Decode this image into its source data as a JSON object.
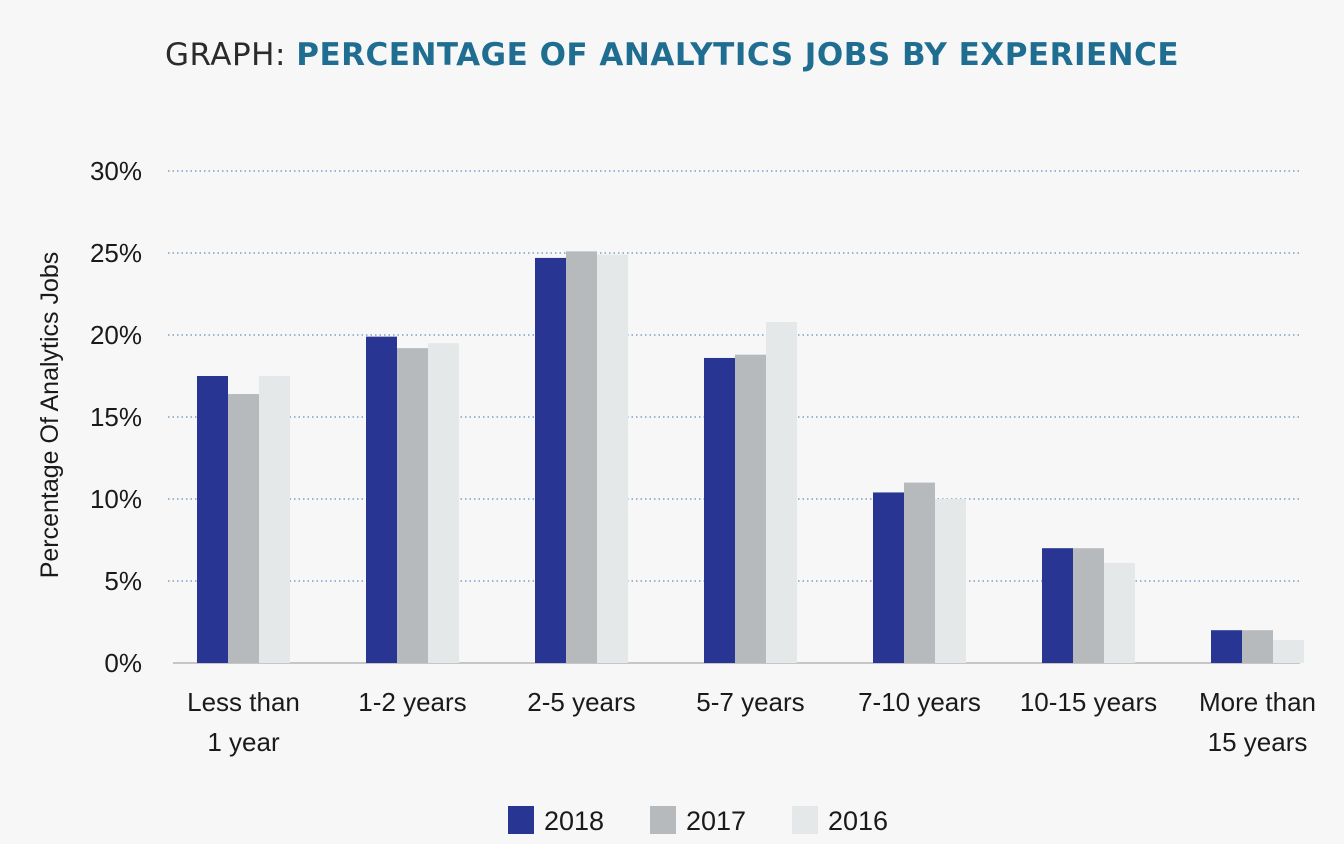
{
  "title": {
    "prefix": "GRAPH:",
    "main": "PERCENTAGE OF ANALYTICS JOBS BY EXPERIENCE"
  },
  "chart_data": {
    "type": "bar",
    "categories": [
      [
        "Less than",
        "1 year"
      ],
      [
        "1-2 years"
      ],
      [
        "2-5 years"
      ],
      [
        "5-7 years"
      ],
      [
        "7-10 years"
      ],
      [
        "10-15 years"
      ],
      [
        "More than",
        "15 years"
      ]
    ],
    "series": [
      {
        "name": "2018",
        "color": "#283593",
        "values": [
          17.5,
          19.9,
          24.7,
          18.6,
          10.4,
          7.0,
          2.0
        ]
      },
      {
        "name": "2017",
        "color": "#b7babd",
        "values": [
          16.4,
          19.2,
          25.1,
          18.8,
          11.0,
          7.0,
          2.0
        ]
      },
      {
        "name": "2016",
        "color": "#e4e8e9",
        "values": [
          17.5,
          19.5,
          24.9,
          20.8,
          10.0,
          6.1,
          1.4
        ]
      }
    ],
    "ylabel": "Percentage Of Analytics Jobs",
    "ylim": [
      0,
      30
    ],
    "yticks": [
      0,
      5,
      10,
      15,
      20,
      25,
      30
    ],
    "ytick_suffix": "%",
    "grid": true,
    "legend_position": "bottom"
  }
}
